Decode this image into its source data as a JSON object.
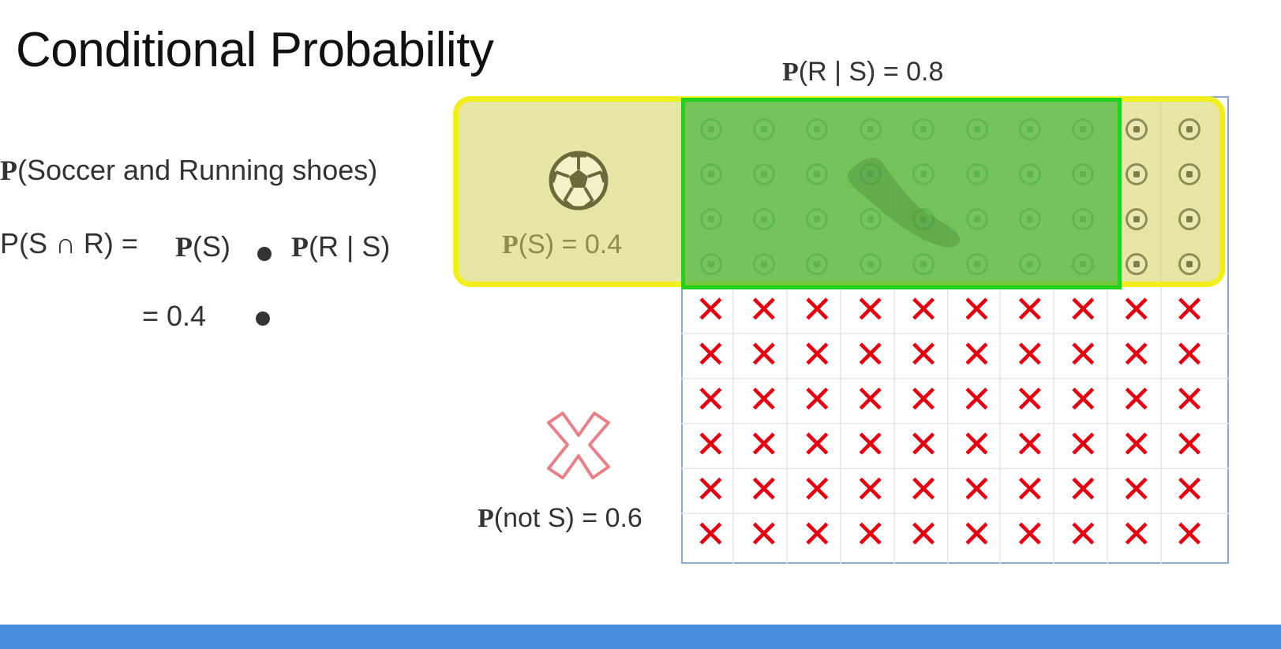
{
  "title": "Conditional Probability",
  "left_panel": {
    "line1_bold": "P",
    "line1_text": "(Soccer and Running shoes)",
    "line2_lhs": "P(S ∩ R) =",
    "line2_p1_bold": "P",
    "line2_p1_text": "(S)",
    "line2_p2_bold": "P",
    "line2_p2_text": "(R | S)",
    "line3_text": "= 0.4"
  },
  "diagram": {
    "label_r_given_s_bold": "P",
    "label_r_given_s_text": "(R | S) = 0.8",
    "label_s_bold": "P",
    "label_s_text": "(S) = 0.4",
    "label_not_s_bold": "P",
    "label_not_s_text": "(not S) = 0.6",
    "grid": {
      "columns": 10,
      "rows": 10,
      "soccer_rows": 4,
      "shoe_columns": 8,
      "not_soccer_rows": 6
    },
    "icons": {
      "soccer": "soccer-ball-icon",
      "shoe": "running-shoe-icon",
      "not": "cross-icon"
    },
    "colors": {
      "soccer_fill": "#dad66e",
      "soccer_border": "#f2ee1e",
      "shoe_fill": "#54ba46",
      "shoe_border": "#1fd21f",
      "cross": "#e00012",
      "bottom_bar": "#4a8ee0"
    }
  }
}
